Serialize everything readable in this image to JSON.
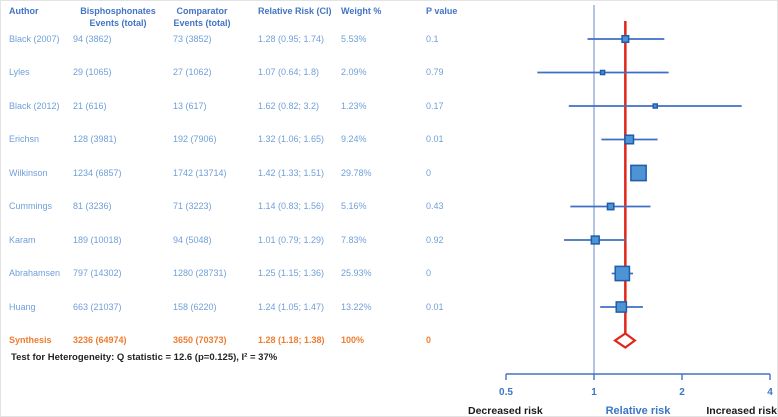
{
  "table": {
    "columns": [
      {
        "key": "author",
        "label_lines": [
          "Author"
        ]
      },
      {
        "key": "bis",
        "label_lines": [
          "Bisphosphonates",
          "Events (total)"
        ]
      },
      {
        "key": "comp",
        "label_lines": [
          "Comparator",
          "Events (total)"
        ]
      },
      {
        "key": "rr",
        "label_lines": [
          "Relative Risk (CI)"
        ]
      },
      {
        "key": "weight",
        "label_lines": [
          "Weight %"
        ]
      },
      {
        "key": "p",
        "label_lines": [
          "P value"
        ]
      }
    ],
    "rows": [
      {
        "author": "Black (2007)",
        "bis": "94 (3862)",
        "comp": "73 (3852)",
        "rr": "1.28 (0.95; 1.74)",
        "weight": "5.53%",
        "p": "0.1"
      },
      {
        "author": "Lyles",
        "bis": "29 (1065)",
        "comp": "27 (1062)",
        "rr": "1.07 (0.64; 1.8)",
        "weight": "2.09%",
        "p": "0.79"
      },
      {
        "author": "Black (2012)",
        "bis": "21 (616)",
        "comp": "13 (617)",
        "rr": "1.62 (0.82; 3.2)",
        "weight": "1.23%",
        "p": "0.17"
      },
      {
        "author": "Erichsn",
        "bis": "128 (3981)",
        "comp": "192 (7906)",
        "rr": "1.32 (1.06; 1.65)",
        "weight": "9.24%",
        "p": "0.01"
      },
      {
        "author": "Wilkinson",
        "bis": "1234 (6857)",
        "comp": "1742 (13714)",
        "rr": "1.42 (1.33; 1.51)",
        "weight": "29.78%",
        "p": "0"
      },
      {
        "author": "Cummings",
        "bis": "81 (3236)",
        "comp": "71 (3223)",
        "rr": "1.14 (0.83; 1.56)",
        "weight": "5.16%",
        "p": "0.43"
      },
      {
        "author": "Karam",
        "bis": "189 (10018)",
        "comp": "94 (5048)",
        "rr": "1.01 (0.79; 1.29)",
        "weight": "7.83%",
        "p": "0.92"
      },
      {
        "author": "Abrahamsen",
        "bis": "797 (14302)",
        "comp": "1280 (28731)",
        "rr": "1.25 (1.15; 1.36)",
        "weight": "25.93%",
        "p": "0"
      },
      {
        "author": "Huang",
        "bis": "663 (21037)",
        "comp": "158 (6220)",
        "rr": "1.24 (1.05; 1.47)",
        "weight": "13.22%",
        "p": "0.01"
      }
    ],
    "synthesis": {
      "author": "Synthesis",
      "bis": "3236 (64974)",
      "comp": "3650 (70373)",
      "rr": "1.28 (1.18; 1.38)",
      "weight": "100%",
      "p": "0"
    },
    "footnote": "Test for Heterogeneity: Q statistic = 12.6 (p=0.125), I² = 37%"
  },
  "chart_data": {
    "type": "scatter",
    "subtype": "forest-plot",
    "title": "",
    "x_axis": {
      "scale": "log2",
      "ticks": [
        "0.5",
        "1",
        "2",
        "4"
      ],
      "tick_values": [
        0.5,
        1,
        2,
        4
      ],
      "range": [
        0.5,
        4
      ],
      "axis_label": "Relative risk",
      "left_annotation": "Decreased risk",
      "right_annotation": "Increased risk"
    },
    "no_effect_value": 1,
    "pooled_line_value": 1.28,
    "studies": [
      {
        "name": "Black (2007)",
        "rr": 1.28,
        "ci_low": 0.95,
        "ci_high": 1.74,
        "weight_pct": 5.53,
        "p": 0.1
      },
      {
        "name": "Lyles",
        "rr": 1.07,
        "ci_low": 0.64,
        "ci_high": 1.8,
        "weight_pct": 2.09,
        "p": 0.79
      },
      {
        "name": "Black (2012)",
        "rr": 1.62,
        "ci_low": 0.82,
        "ci_high": 3.2,
        "weight_pct": 1.23,
        "p": 0.17
      },
      {
        "name": "Erichsn",
        "rr": 1.32,
        "ci_low": 1.06,
        "ci_high": 1.65,
        "weight_pct": 9.24,
        "p": 0.01
      },
      {
        "name": "Wilkinson",
        "rr": 1.42,
        "ci_low": 1.33,
        "ci_high": 1.51,
        "weight_pct": 29.78,
        "p": 0
      },
      {
        "name": "Cummings",
        "rr": 1.14,
        "ci_low": 0.83,
        "ci_high": 1.56,
        "weight_pct": 5.16,
        "p": 0.43
      },
      {
        "name": "Karam",
        "rr": 1.01,
        "ci_low": 0.79,
        "ci_high": 1.29,
        "weight_pct": 7.83,
        "p": 0.92
      },
      {
        "name": "Abrahamsen",
        "rr": 1.25,
        "ci_low": 1.15,
        "ci_high": 1.36,
        "weight_pct": 25.93,
        "p": 0
      },
      {
        "name": "Huang",
        "rr": 1.24,
        "ci_low": 1.05,
        "ci_high": 1.47,
        "weight_pct": 13.22,
        "p": 0.01
      }
    ],
    "synthesis": {
      "name": "Synthesis",
      "rr": 1.28,
      "ci_low": 1.18,
      "ci_high": 1.38,
      "weight_pct": 100,
      "p": 0
    }
  },
  "colors": {
    "header_text": "#4374c4",
    "row_text": "#6f9fd9",
    "synthesis_text": "#ed7d31",
    "footnote_text": "#242424",
    "ci_line": "#3f6fc4",
    "marker_fill": "#4e93d4",
    "marker_border": "#1f5dab",
    "no_effect_line": "#8aa5d6",
    "pooled_line": "#e2251a",
    "diamond_outline": "#e2251a",
    "axis": "#4472c4",
    "axis_text_blue": "#3b76c8",
    "annotation_black": "#1a1a1a"
  }
}
